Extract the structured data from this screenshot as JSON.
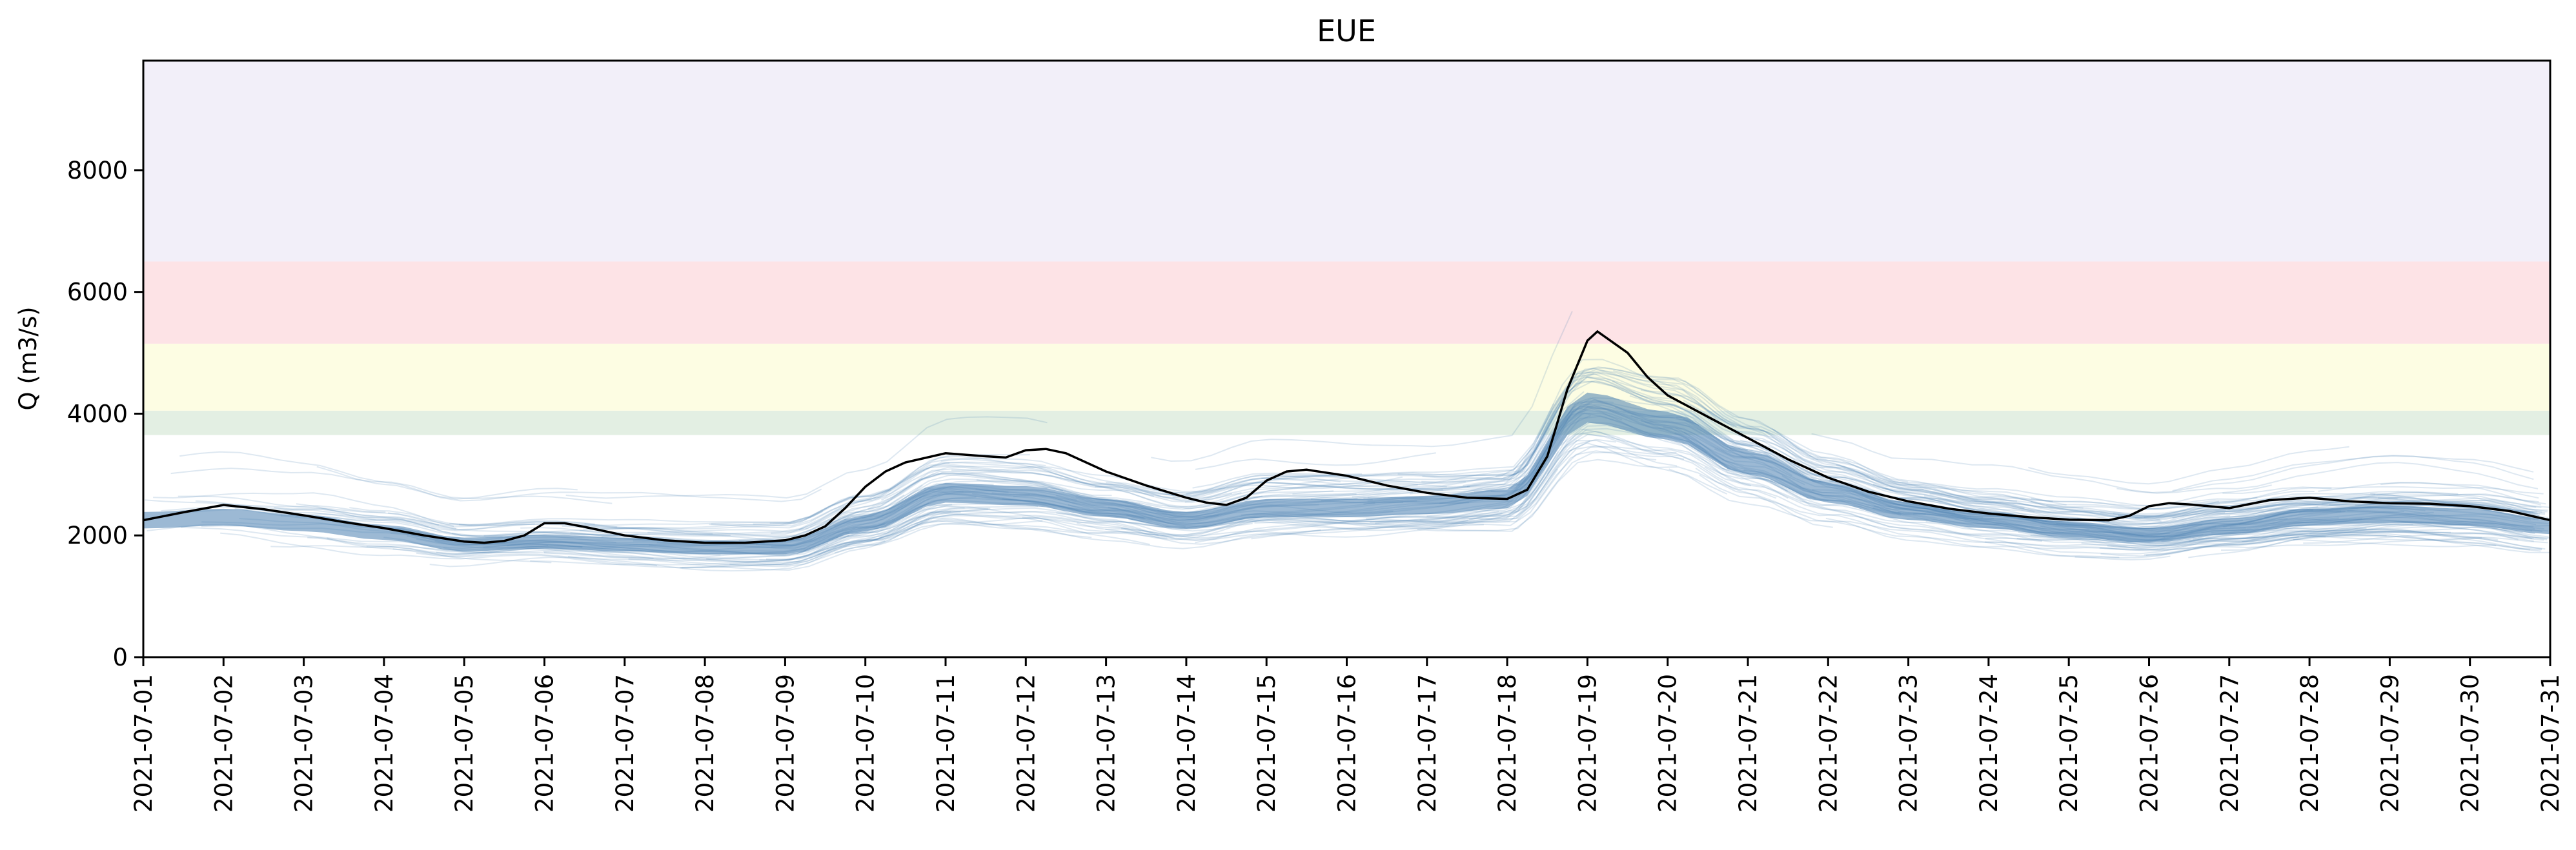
{
  "chart_data": {
    "type": "line",
    "title": "EUE",
    "xlabel": "",
    "ylabel": "Q (m3/s)",
    "ylim": [
      0,
      9800
    ],
    "yticks": [
      0,
      2000,
      4000,
      6000,
      8000
    ],
    "ytick_labels": [
      "0",
      "2000",
      "4000",
      "6000",
      "8000"
    ],
    "x_start": "2021-07-01",
    "x_end": "2021-07-31",
    "xtick_labels": [
      "2021-07-01",
      "2021-07-02",
      "2021-07-03",
      "2021-07-04",
      "2021-07-05",
      "2021-07-06",
      "2021-07-07",
      "2021-07-08",
      "2021-07-09",
      "2021-07-10",
      "2021-07-11",
      "2021-07-12",
      "2021-07-13",
      "2021-07-14",
      "2021-07-15",
      "2021-07-16",
      "2021-07-17",
      "2021-07-18",
      "2021-07-19",
      "2021-07-20",
      "2021-07-21",
      "2021-07-22",
      "2021-07-23",
      "2021-07-24",
      "2021-07-25",
      "2021-07-26",
      "2021-07-27",
      "2021-07-28",
      "2021-07-29",
      "2021-07-30",
      "2021-07-31"
    ],
    "grid": false,
    "threshold_bands": [
      {
        "from": 3650,
        "to": 4050,
        "color": "#e3efe3"
      },
      {
        "from": 4050,
        "to": 5150,
        "color": "#fdfde3"
      },
      {
        "from": 5150,
        "to": 6500,
        "color": "#fde3e6"
      },
      {
        "from": 6500,
        "to": 9800,
        "color": "#f2eff9"
      }
    ],
    "ensemble_color": "#4a7fb0",
    "ensemble_median": [
      [
        "2021-07-01",
        2250
      ],
      [
        "2021-07-02",
        2300
      ],
      [
        "2021-07-03",
        2200
      ],
      [
        "2021-07-04",
        2050
      ],
      [
        "2021-07-05",
        1850
      ],
      [
        "2021-07-06",
        1900
      ],
      [
        "2021-07-07",
        1850
      ],
      [
        "2021-07-08",
        1800
      ],
      [
        "2021-07-09",
        1800
      ],
      [
        "2021-07-10",
        2200
      ],
      [
        "2021-07-11",
        2700
      ],
      [
        "2021-07-12",
        2650
      ],
      [
        "2021-07-13",
        2450
      ],
      [
        "2021-07-14",
        2250
      ],
      [
        "2021-07-15",
        2450
      ],
      [
        "2021-07-16",
        2450
      ],
      [
        "2021-07-17",
        2500
      ],
      [
        "2021-07-18",
        2600
      ],
      [
        "2021-07-19",
        4100
      ],
      [
        "2021-07-20",
        3800
      ],
      [
        "2021-07-21",
        3200
      ],
      [
        "2021-07-22",
        2700
      ],
      [
        "2021-07-23",
        2400
      ],
      [
        "2021-07-24",
        2250
      ],
      [
        "2021-07-25",
        2100
      ],
      [
        "2021-07-26",
        2000
      ],
      [
        "2021-07-27",
        2150
      ],
      [
        "2021-07-28",
        2300
      ],
      [
        "2021-07-29",
        2350
      ],
      [
        "2021-07-30",
        2300
      ],
      [
        "2021-07-31",
        2150
      ]
    ],
    "series": [
      {
        "color": "#000000",
        "points": [
          [
            "2021-07-01",
            2250
          ],
          [
            "2021-07-01T12:00",
            2380
          ],
          [
            "2021-07-02",
            2500
          ],
          [
            "2021-07-02T12:00",
            2430
          ],
          [
            "2021-07-03",
            2330
          ],
          [
            "2021-07-03T12:00",
            2220
          ],
          [
            "2021-07-04",
            2120
          ],
          [
            "2021-07-04T12:00",
            2000
          ],
          [
            "2021-07-05",
            1900
          ],
          [
            "2021-07-05T06:00",
            1880
          ],
          [
            "2021-07-05T12:00",
            1910
          ],
          [
            "2021-07-05T18:00",
            2000
          ],
          [
            "2021-07-06",
            2200
          ],
          [
            "2021-07-06T06:00",
            2200
          ],
          [
            "2021-07-06T12:00",
            2140
          ],
          [
            "2021-07-07",
            2000
          ],
          [
            "2021-07-07T12:00",
            1920
          ],
          [
            "2021-07-08",
            1880
          ],
          [
            "2021-07-08T12:00",
            1880
          ],
          [
            "2021-07-09",
            1920
          ],
          [
            "2021-07-09T06:00",
            2000
          ],
          [
            "2021-07-09T12:00",
            2150
          ],
          [
            "2021-07-09T18:00",
            2450
          ],
          [
            "2021-07-10",
            2800
          ],
          [
            "2021-07-10T06:00",
            3050
          ],
          [
            "2021-07-10T12:00",
            3200
          ],
          [
            "2021-07-11",
            3350
          ],
          [
            "2021-07-11T12:00",
            3300
          ],
          [
            "2021-07-11T18:00",
            3280
          ],
          [
            "2021-07-12",
            3400
          ],
          [
            "2021-07-12T06:00",
            3420
          ],
          [
            "2021-07-12T12:00",
            3350
          ],
          [
            "2021-07-13",
            3050
          ],
          [
            "2021-07-13T12:00",
            2820
          ],
          [
            "2021-07-14",
            2620
          ],
          [
            "2021-07-14T06:00",
            2540
          ],
          [
            "2021-07-14T12:00",
            2500
          ],
          [
            "2021-07-14T18:00",
            2620
          ],
          [
            "2021-07-15",
            2900
          ],
          [
            "2021-07-15T06:00",
            3050
          ],
          [
            "2021-07-15T12:00",
            3080
          ],
          [
            "2021-07-16",
            2980
          ],
          [
            "2021-07-16T12:00",
            2820
          ],
          [
            "2021-07-17",
            2700
          ],
          [
            "2021-07-17T12:00",
            2620
          ],
          [
            "2021-07-18",
            2600
          ],
          [
            "2021-07-18T06:00",
            2750
          ],
          [
            "2021-07-18T12:00",
            3300
          ],
          [
            "2021-07-18T18:00",
            4400
          ],
          [
            "2021-07-19",
            5200
          ],
          [
            "2021-07-19T03:00",
            5350
          ],
          [
            "2021-07-19T12:00",
            5000
          ],
          [
            "2021-07-19T18:00",
            4600
          ],
          [
            "2021-07-20",
            4300
          ],
          [
            "2021-07-20T12:00",
            3950
          ],
          [
            "2021-07-21",
            3600
          ],
          [
            "2021-07-21T12:00",
            3250
          ],
          [
            "2021-07-22",
            2950
          ],
          [
            "2021-07-22T12:00",
            2720
          ],
          [
            "2021-07-23",
            2560
          ],
          [
            "2021-07-23T12:00",
            2440
          ],
          [
            "2021-07-24",
            2360
          ],
          [
            "2021-07-24T12:00",
            2300
          ],
          [
            "2021-07-25",
            2260
          ],
          [
            "2021-07-25T12:00",
            2250
          ],
          [
            "2021-07-25T18:00",
            2320
          ],
          [
            "2021-07-26",
            2480
          ],
          [
            "2021-07-26T06:00",
            2530
          ],
          [
            "2021-07-26T12:00",
            2510
          ],
          [
            "2021-07-27",
            2450
          ],
          [
            "2021-07-27T12:00",
            2580
          ],
          [
            "2021-07-28",
            2620
          ],
          [
            "2021-07-28T12:00",
            2560
          ],
          [
            "2021-07-29",
            2530
          ],
          [
            "2021-07-29T12:00",
            2520
          ],
          [
            "2021-07-30",
            2480
          ],
          [
            "2021-07-30T12:00",
            2400
          ],
          [
            "2021-07-31",
            2250
          ]
        ]
      }
    ]
  }
}
